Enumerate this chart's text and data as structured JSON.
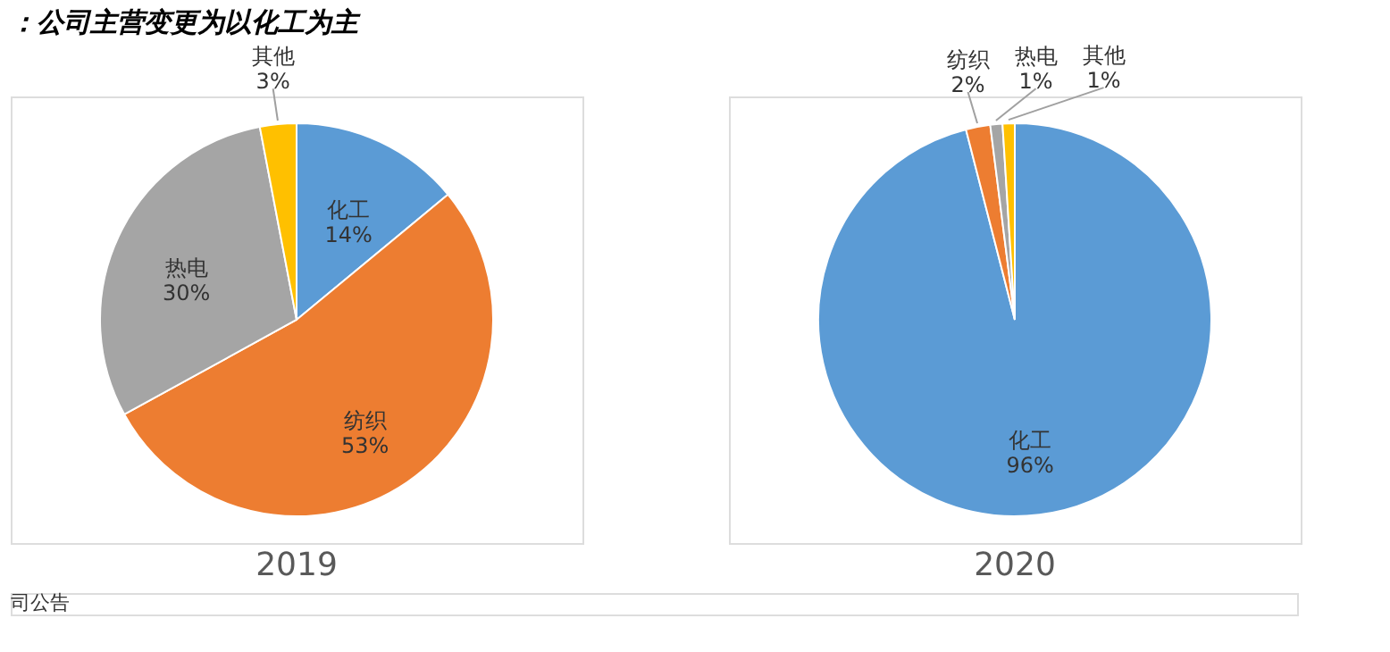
{
  "chart_data": [
    {
      "type": "pie",
      "title": "：公司主营变更为以化工为主",
      "subtitle": "2019",
      "categories": [
        "化工",
        "纺织",
        "热电",
        "其他"
      ],
      "values": [
        14,
        53,
        30,
        3
      ],
      "value_labels": [
        "14%",
        "53%",
        "30%",
        "3%"
      ],
      "colors": [
        "#5b9bd5",
        "#ed7d31",
        "#a5a5a5",
        "#ffc000"
      ],
      "legend": false,
      "annotations": [
        "司公告"
      ]
    },
    {
      "type": "pie",
      "subtitle": "2020",
      "categories": [
        "化工",
        "纺织",
        "热电",
        "其他"
      ],
      "values": [
        96,
        2,
        1,
        1
      ],
      "value_labels": [
        "96%",
        "2%",
        "1%",
        "1%"
      ],
      "colors": [
        "#5b9bd5",
        "#ed7d31",
        "#a5a5a5",
        "#ffc000"
      ],
      "legend": false
    }
  ]
}
